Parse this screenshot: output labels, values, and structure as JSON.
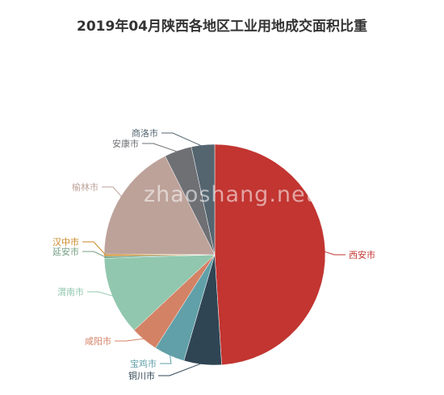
{
  "chart_data": {
    "type": "pie",
    "title": "2019年04月陕西各地区工业用地成交面积比重",
    "slices": [
      {
        "name": "西安市",
        "value": 49.0,
        "color": "#c23531"
      },
      {
        "name": "铜川市",
        "value": 5.5,
        "color": "#2f4554"
      },
      {
        "name": "宝鸡市",
        "value": 4.5,
        "color": "#61a0a8"
      },
      {
        "name": "咸阳市",
        "value": 4.0,
        "color": "#d48265"
      },
      {
        "name": "渭南市",
        "value": 11.5,
        "color": "#91c7ae"
      },
      {
        "name": "延安市",
        "value": 0.3,
        "color": "#749f83"
      },
      {
        "name": "汉中市",
        "value": 0.3,
        "color": "#ca8622"
      },
      {
        "name": "榆林市",
        "value": 17.5,
        "color": "#bda29a"
      },
      {
        "name": "安康市",
        "value": 4.0,
        "color": "#6e7074"
      },
      {
        "name": "商洛市",
        "value": 3.4,
        "color": "#546570"
      }
    ],
    "legend": "none"
  },
  "watermark": "zhaoshang.net"
}
